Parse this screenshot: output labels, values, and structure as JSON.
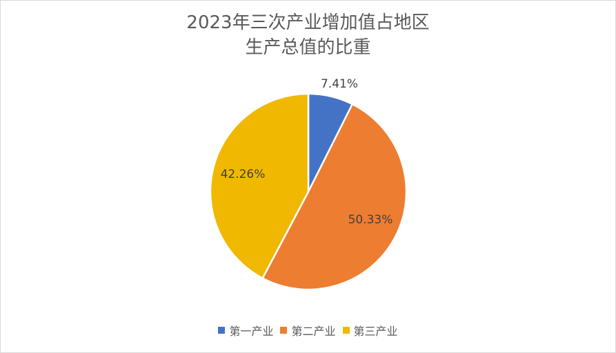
{
  "chart_data": {
    "type": "pie",
    "title_lines": [
      "2023年三次产业增加值占地区",
      "生产总值的比重"
    ],
    "categories": [
      "第一产业",
      "第二产业",
      "第三产业"
    ],
    "values": [
      7.41,
      50.33,
      42.26
    ],
    "labels": [
      "7.41%",
      "50.33%",
      "42.26%"
    ],
    "colors": [
      "#4472C4",
      "#ED7D31",
      "#F0B800"
    ],
    "legend_position": "bottom"
  }
}
